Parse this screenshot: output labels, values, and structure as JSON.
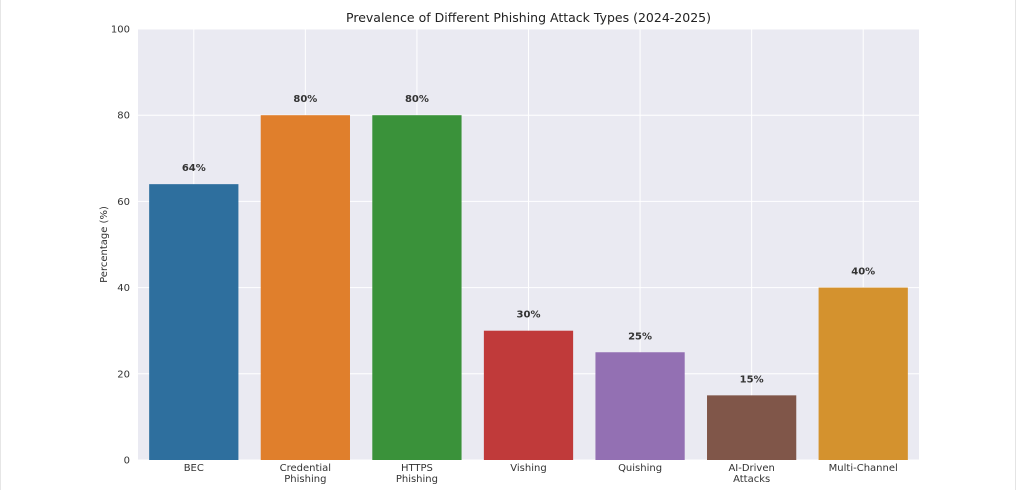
{
  "chart_data": {
    "type": "bar",
    "title": "Prevalence of Different Phishing Attack Types (2024-2025)",
    "xlabel": "",
    "ylabel": "Percentage (%)",
    "ylim": [
      0,
      100
    ],
    "yticks": [
      0,
      20,
      40,
      60,
      80,
      100
    ],
    "grid": true,
    "categories": [
      [
        "BEC"
      ],
      [
        "Credential",
        "Phishing"
      ],
      [
        "HTTPS",
        "Phishing"
      ],
      [
        "Vishing"
      ],
      [
        "Quishing"
      ],
      [
        "AI-Driven",
        "Attacks"
      ],
      [
        "Multi-Channel"
      ]
    ],
    "values": [
      64,
      80,
      80,
      30,
      25,
      15,
      40
    ],
    "data_labels": [
      "64%",
      "80%",
      "80%",
      "30%",
      "25%",
      "15%",
      "40%"
    ],
    "colors": [
      "#2e6f9e",
      "#e07f2c",
      "#3a923a",
      "#c03a3a",
      "#9370b3",
      "#805649",
      "#d4922e"
    ],
    "background": "#eaeaf2",
    "grid_color": "#ffffff"
  }
}
